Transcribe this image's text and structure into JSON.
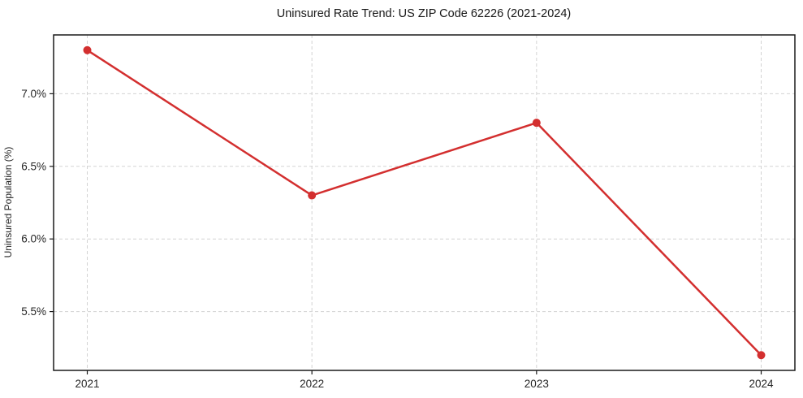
{
  "chart_data": {
    "type": "line",
    "title": "Uninsured Rate Trend: US ZIP Code 62226 (2021-2024)",
    "xlabel": "",
    "ylabel": "Uninsured Population (%)",
    "x": [
      2021,
      2022,
      2023,
      2024
    ],
    "x_tick_labels": [
      "2021",
      "2022",
      "2023",
      "2024"
    ],
    "y_ticks": [
      5.5,
      6.0,
      6.5,
      7.0
    ],
    "y_tick_labels": [
      "5.5%",
      "6.0%",
      "6.5%",
      "7.0%"
    ],
    "values": [
      7.3,
      6.3,
      6.8,
      5.2
    ],
    "xlim": [
      2020.85,
      2024.15
    ],
    "ylim": [
      5.095,
      7.405
    ],
    "grid": true,
    "grid_style": "dashed",
    "legend": false,
    "line_color": "#d32f2f",
    "marker": "circle",
    "background_color": "#ffffff",
    "spine_color": "#1a1a1a",
    "grid_color": "#d3d3d3"
  }
}
